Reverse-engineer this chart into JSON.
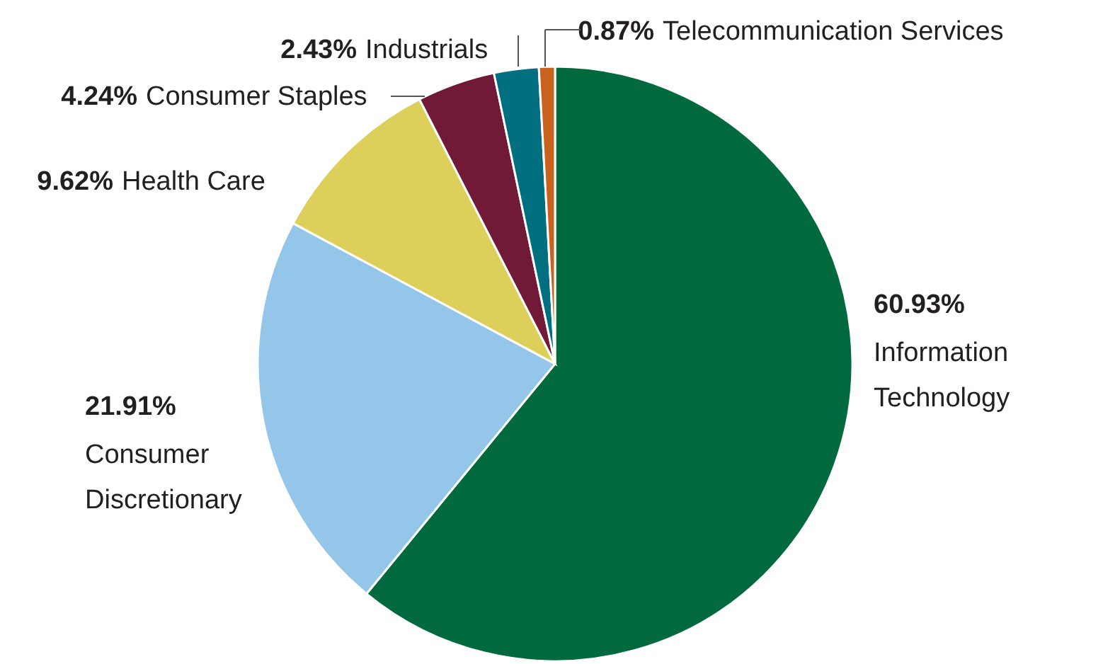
{
  "chart_data": {
    "type": "pie",
    "categories": [
      "Information Technology",
      "Consumer Discretionary",
      "Health Care",
      "Consumer Staples",
      "Industrials",
      "Telecommunication Services"
    ],
    "values": [
      60.93,
      21.91,
      9.62,
      4.24,
      2.43,
      0.87
    ],
    "value_labels": [
      "60.93%",
      "21.91%",
      "9.62%",
      "4.24%",
      "2.43%",
      "0.87%"
    ],
    "colors": [
      "#006a3e",
      "#93c6e8",
      "#ddd05a",
      "#701a38",
      "#006f80",
      "#c9621c"
    ]
  }
}
